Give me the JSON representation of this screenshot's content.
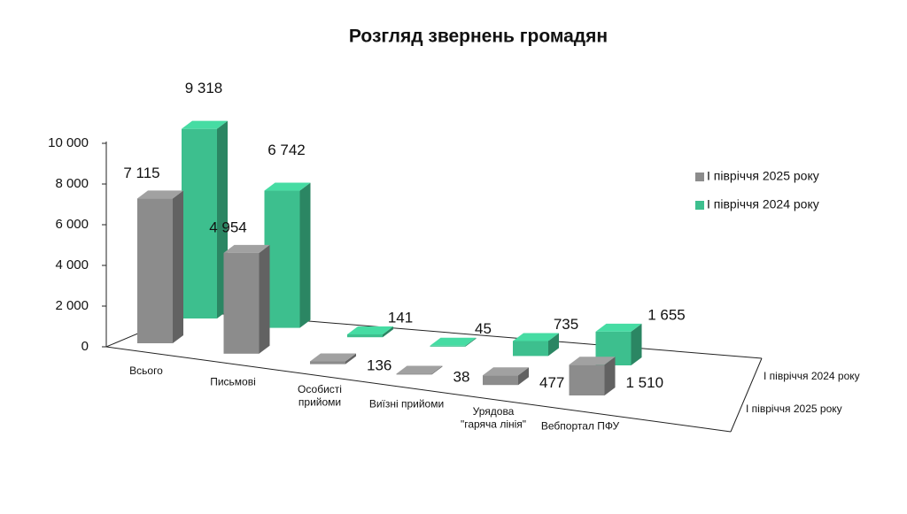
{
  "chart_data": {
    "type": "bar3d",
    "title": "Розгляд звернень громадян",
    "categories": [
      "Всього",
      "Письмові",
      "Особисті\nприйоми",
      "Виїзні прийоми",
      "Урядова\n\"гаряча лінія\"",
      "Вебпортал ПФУ"
    ],
    "series": [
      {
        "name": "І півріччя 2025 року",
        "color": "#8c8c8c",
        "values": [
          7115,
          4954,
          136,
          38,
          477,
          1510
        ],
        "value_labels": [
          "7 115",
          "4 954",
          "136",
          "38",
          "477",
          "1 510"
        ]
      },
      {
        "name": "І півріччя 2024 року",
        "color": "#3dbf8e",
        "values": [
          9318,
          6742,
          141,
          45,
          735,
          1655
        ],
        "value_labels": [
          "9 318",
          "6 742",
          "141",
          "45",
          "735",
          "1 655"
        ]
      }
    ],
    "ylim": [
      0,
      10000
    ],
    "yticks": [
      0,
      {
        "value": 2000,
        "label": "2 000"
      },
      {
        "value": 4000,
        "label": "4 000"
      },
      {
        "value": 6000,
        "label": "6 000"
      },
      {
        "value": 8000,
        "label": "8 000"
      },
      {
        "value": 10000,
        "label": "10 000"
      }
    ],
    "grid": false
  }
}
